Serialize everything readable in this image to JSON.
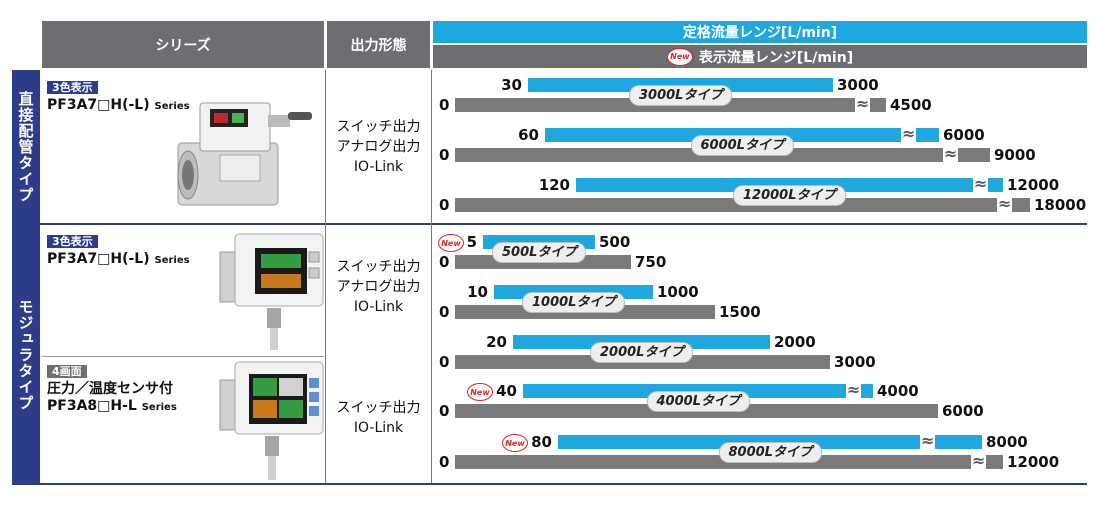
{
  "header": {
    "series": "シリーズ",
    "output": "出力形態",
    "rated": "定格流量レンジ[L/min]",
    "display": "表示流量レンジ[L/min]",
    "new": "New"
  },
  "groups": {
    "direct": "直接配管タイプ",
    "modular": "モジュラタイプ"
  },
  "products": [
    {
      "badge": "3色表示",
      "line1": "PF3A7□H(-L)",
      "line1_suffix": "Series",
      "line2": ""
    },
    {
      "badge": "3色表示",
      "line1": "PF3A7□H(-L)",
      "line1_suffix": "Series",
      "line2": ""
    },
    {
      "badge": "4画面",
      "line1": "圧力／温度センサ付",
      "line1_suffix": "",
      "line2": "PF3A8□H-L",
      "line2_suffix": "Series"
    }
  ],
  "outputs": {
    "three": [
      "スイッチ出力",
      "アナログ出力",
      "IO-Link"
    ],
    "two": [
      "スイッチ出力",
      "IO-Link"
    ]
  },
  "chart_data": {
    "type": "bar",
    "title": "定格流量レンジ[L/min] / 表示流量レンジ[L/min]",
    "series_names": [
      "定格流量レンジ[L/min]",
      "表示流量レンジ[L/min]"
    ],
    "colors": {
      "rated": "#1fa7e0",
      "display": "#7a7a7a"
    },
    "rows": [
      {
        "type_label": "3000Lタイプ",
        "rated_min": 30,
        "rated_max": 3000,
        "display_min": 0,
        "display_max": 4500,
        "new": false
      },
      {
        "type_label": "6000Lタイプ",
        "rated_min": 60,
        "rated_max": 6000,
        "display_min": 0,
        "display_max": 9000,
        "new": false
      },
      {
        "type_label": "12000Lタイプ",
        "rated_min": 120,
        "rated_max": 12000,
        "display_min": 0,
        "display_max": 18000,
        "new": false
      },
      {
        "type_label": "500Lタイプ",
        "rated_min": 5,
        "rated_max": 500,
        "display_min": 0,
        "display_max": 750,
        "new": true
      },
      {
        "type_label": "1000Lタイプ",
        "rated_min": 10,
        "rated_max": 1000,
        "display_min": 0,
        "display_max": 1500,
        "new": false
      },
      {
        "type_label": "2000Lタイプ",
        "rated_min": 20,
        "rated_max": 2000,
        "display_min": 0,
        "display_max": 3000,
        "new": false
      },
      {
        "type_label": "4000Lタイプ",
        "rated_min": 40,
        "rated_max": 4000,
        "display_min": 0,
        "display_max": 6000,
        "new": true
      },
      {
        "type_label": "8000Lタイプ",
        "rated_min": 80,
        "rated_max": 8000,
        "display_min": 0,
        "display_max": 12000,
        "new": true
      }
    ]
  }
}
